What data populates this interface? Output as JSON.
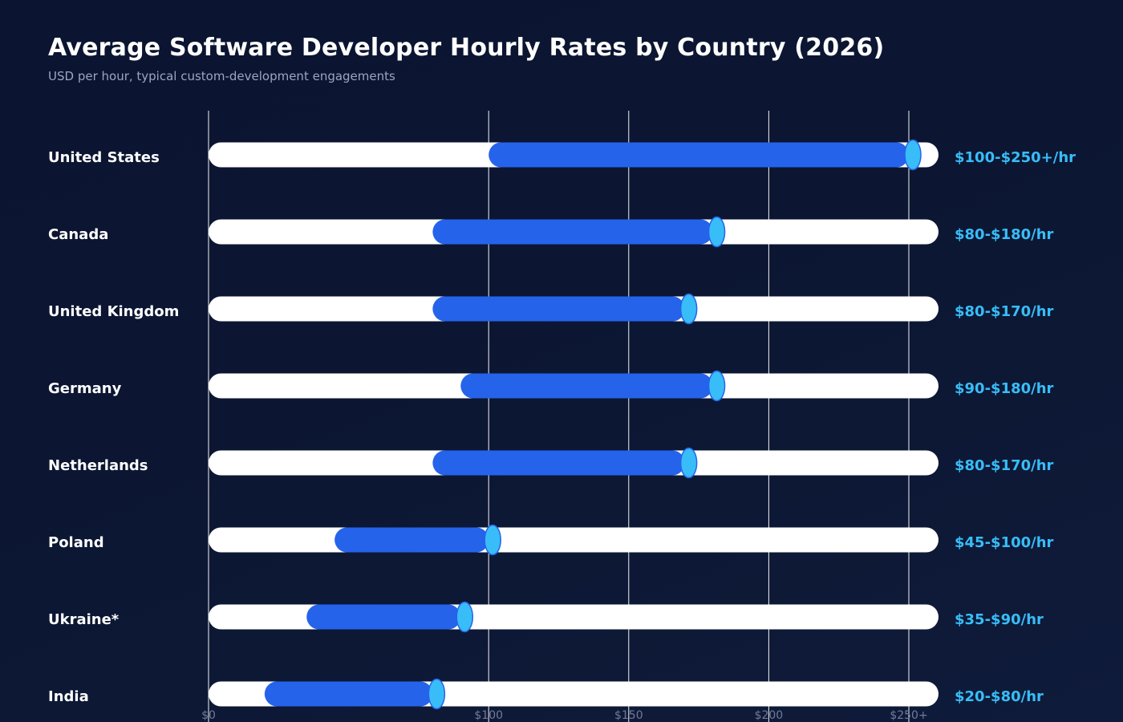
{
  "header": {
    "title": "Average Software Developer Hourly Rates by Country (2026)",
    "subtitle": "USD per hour, typical custom-development engagements"
  },
  "colors": {
    "background": "#0c1733",
    "track": "#ffffff",
    "range_bar": "#2563eb",
    "endpoint_marker": "#38bdf8",
    "range_label": "#38bdf8",
    "gridline": "#ffffff",
    "tick_label": "#6f7b99"
  },
  "chart_data": {
    "type": "bar",
    "subtype": "horizontal floating range bar",
    "title": "Average Software Developer Hourly Rates by Country (2026)",
    "subtitle": "USD per hour, typical custom-development engagements",
    "xlabel": "",
    "ylabel": "",
    "xlim": [
      0,
      260
    ],
    "grid": true,
    "legend": "none",
    "x_ticks": [
      {
        "value": 0,
        "label": "$0"
      },
      {
        "value": 100,
        "label": "$100"
      },
      {
        "value": 150,
        "label": "$150"
      },
      {
        "value": 200,
        "label": "$200"
      },
      {
        "value": 250,
        "label": "$250+"
      }
    ],
    "categories": [
      "United States",
      "Canada",
      "United Kingdom",
      "Germany",
      "Netherlands",
      "Poland",
      "Ukraine*",
      "India"
    ],
    "ranges": [
      {
        "category": "United States",
        "min": 100,
        "max": 250,
        "label": "$100-$250+/hr"
      },
      {
        "category": "Canada",
        "min": 80,
        "max": 180,
        "label": "$80-$180/hr"
      },
      {
        "category": "United Kingdom",
        "min": 80,
        "max": 170,
        "label": "$80-$170/hr"
      },
      {
        "category": "Germany",
        "min": 90,
        "max": 180,
        "label": "$90-$180/hr"
      },
      {
        "category": "Netherlands",
        "min": 80,
        "max": 170,
        "label": "$80-$170/hr"
      },
      {
        "category": "Poland",
        "min": 45,
        "max": 100,
        "label": "$45-$100/hr"
      },
      {
        "category": "Ukraine*",
        "min": 35,
        "max": 90,
        "label": "$35-$90/hr"
      },
      {
        "category": "India",
        "min": 20,
        "max": 80,
        "label": "$20-$80/hr"
      }
    ]
  }
}
